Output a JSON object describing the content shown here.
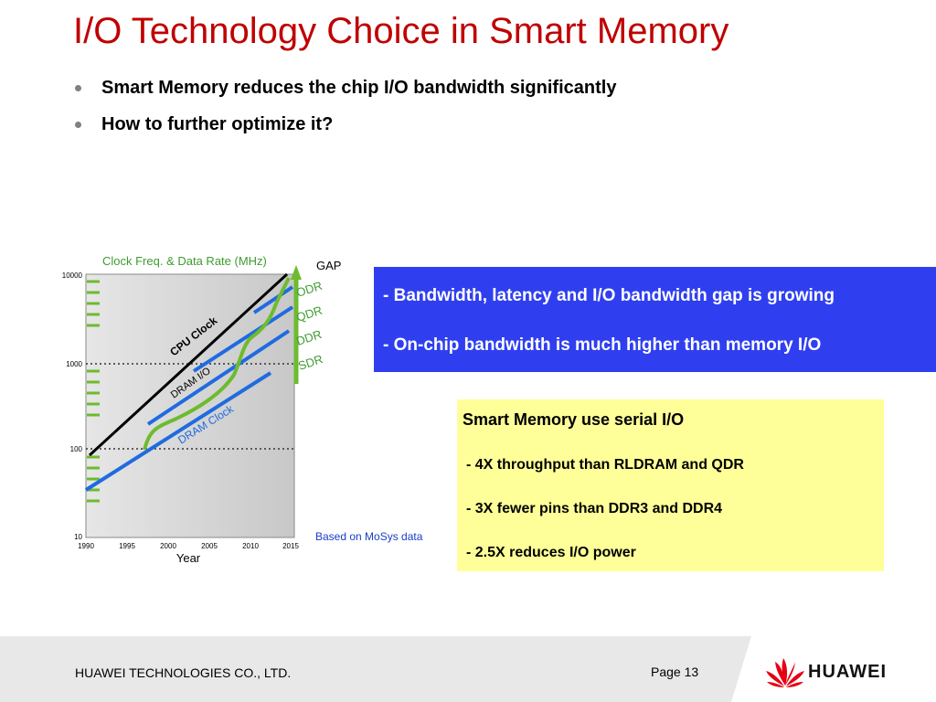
{
  "slide": {
    "title": "I/O Technology Choice in Smart Memory",
    "bullets": [
      "Smart Memory reduces the chip I/O bandwidth significantly",
      "How to further optimize it?"
    ]
  },
  "chart_data": {
    "type": "line",
    "title": "Clock Freq. & Data Rate (MHz)",
    "xlabel": "Year",
    "ylabel": "",
    "x_ticks": [
      "1990",
      "1995",
      "2000",
      "2005",
      "2010",
      "2015"
    ],
    "y_ticks": [
      "10",
      "100",
      "1000",
      "10000"
    ],
    "xlim": [
      1990,
      2015
    ],
    "ylim": [
      10,
      10000
    ],
    "log_y": true,
    "series": [
      {
        "name": "CPU Clock",
        "color": "#000000"
      },
      {
        "name": "DRAM I/O",
        "color": "#6dbb2e"
      },
      {
        "name": "DRAM Clock",
        "color": "#1f6be0"
      }
    ],
    "side_labels": [
      "GAP",
      "ODR",
      "QDR",
      "DDR",
      "SDR"
    ],
    "source_note": "Based on MoSys data"
  },
  "blue_box": {
    "line1": "- Bandwidth, latency and I/O bandwidth gap is growing",
    "line2": "- On-chip bandwidth is much higher than memory I/O"
  },
  "yellow_box": {
    "heading": "Smart Memory use serial I/O",
    "items": [
      "- 4X throughput than RLDRAM and QDR",
      "- 3X fewer pins than DDR3 and DDR4",
      "- 2.5X reduces I/O power"
    ]
  },
  "footer": {
    "company": "HUAWEI TECHNOLOGIES CO., LTD.",
    "page": "Page 13",
    "brand": "HUAWEI",
    "brand_color": "#e60012"
  }
}
